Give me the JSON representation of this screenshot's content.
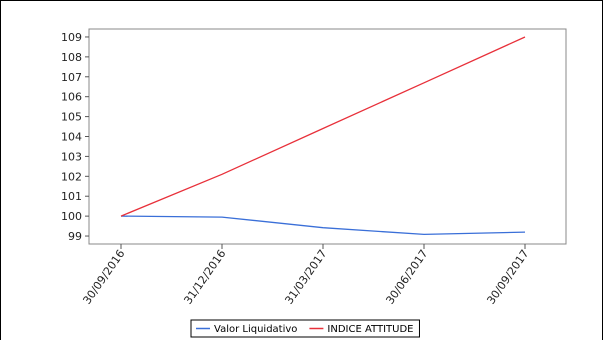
{
  "chart_data": {
    "type": "line",
    "title": "",
    "xlabel": "",
    "ylabel": "",
    "categories": [
      "30/09/2016",
      "31/12/2016",
      "31/03/2017",
      "30/06/2017",
      "30/09/2017"
    ],
    "ylim": [
      98.6,
      109.4
    ],
    "yticks": [
      99,
      100,
      101,
      102,
      103,
      104,
      105,
      106,
      107,
      108,
      109
    ],
    "grid": false,
    "legend_position": "bottom",
    "series": [
      {
        "name": "Valor Liquidativo",
        "color": "#3a6fd8",
        "values": [
          100.0,
          99.95,
          99.42,
          99.08,
          99.2
        ]
      },
      {
        "name": "INDICE ATTITUDE",
        "color": "#e8303a",
        "values": [
          100.0,
          102.1,
          104.4,
          106.7,
          109.0
        ]
      }
    ]
  }
}
